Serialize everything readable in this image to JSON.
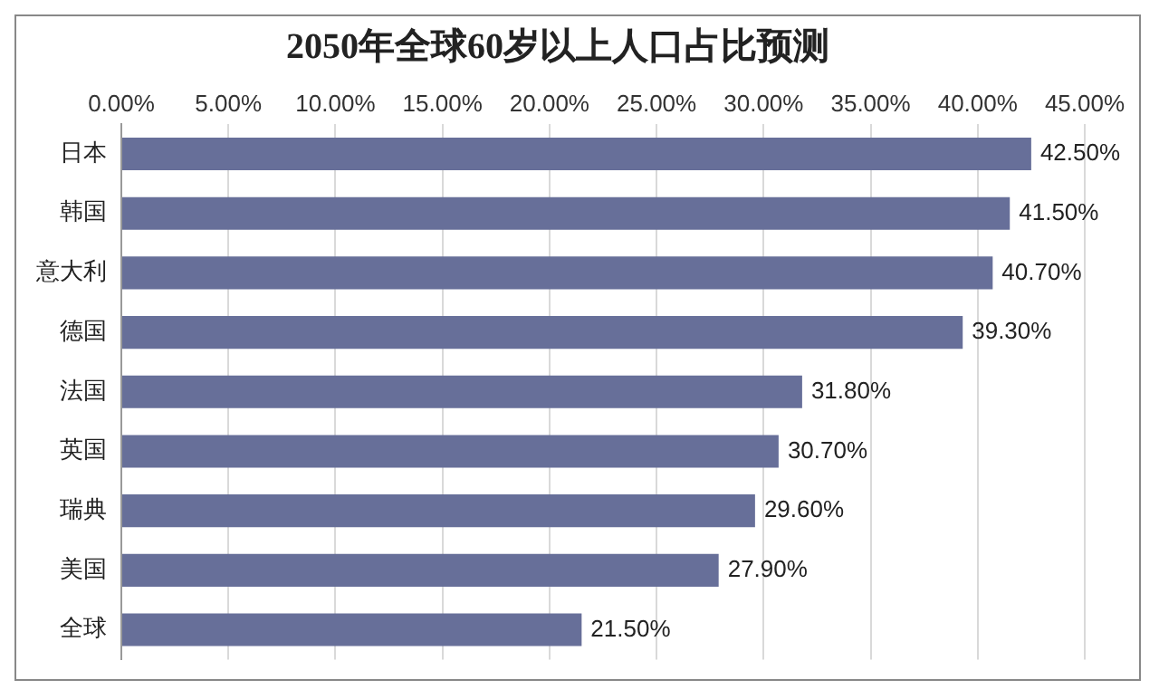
{
  "chart_data": {
    "type": "bar",
    "orientation": "horizontal",
    "title": "2050年全球60岁以上人口占比预测",
    "categories": [
      "日本",
      "韩国",
      "意大利",
      "德国",
      "法国",
      "英国",
      "瑞典",
      "美国",
      "全球"
    ],
    "values": [
      42.5,
      41.5,
      40.7,
      39.3,
      31.8,
      30.7,
      29.6,
      27.9,
      21.5
    ],
    "value_labels": [
      "42.50%",
      "41.50%",
      "40.70%",
      "39.30%",
      "31.80%",
      "30.70%",
      "29.60%",
      "27.90%",
      "21.50%"
    ],
    "color": "#676f99",
    "xlim": [
      0,
      45
    ],
    "xticks": [
      {
        "value": 0,
        "label": "0.00%"
      },
      {
        "value": 5,
        "label": "5.00%"
      },
      {
        "value": 10,
        "label": "10.00%"
      },
      {
        "value": 15,
        "label": "15.00%"
      },
      {
        "value": 20,
        "label": "20.00%"
      },
      {
        "value": 25,
        "label": "25.00%"
      },
      {
        "value": 30,
        "label": "30.00%"
      },
      {
        "value": 35,
        "label": "35.00%"
      },
      {
        "value": 40,
        "label": "40.00%"
      },
      {
        "value": 45,
        "label": "45.00%"
      }
    ],
    "grid": "x",
    "legend": false
  }
}
